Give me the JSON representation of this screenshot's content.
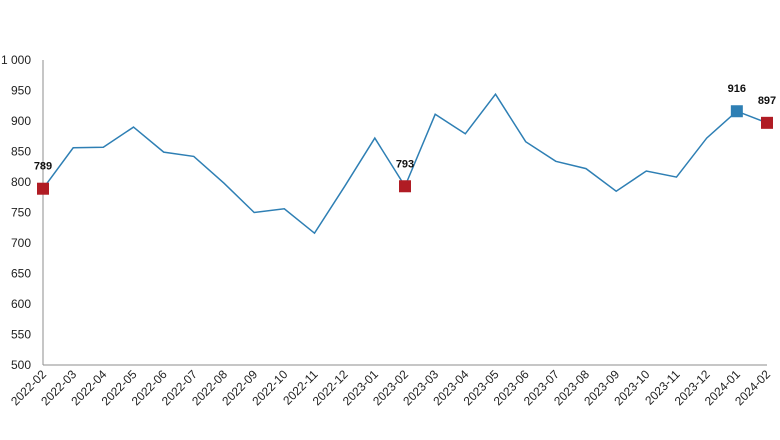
{
  "chart_data": {
    "type": "line",
    "title": "",
    "xlabel": "",
    "ylabel": "",
    "ylim": [
      500,
      1000
    ],
    "yticks": [
      500,
      550,
      600,
      650,
      700,
      750,
      800,
      850,
      900,
      950,
      1000
    ],
    "ytick_labels": [
      "500",
      "550",
      "600",
      "650",
      "700",
      "750",
      "800",
      "850",
      "900",
      "950",
      "1 000"
    ],
    "grid": false,
    "categories": [
      "2022-02",
      "2022-03",
      "2022-04",
      "2022-05",
      "2022-06",
      "2022-07",
      "2022-08",
      "2022-09",
      "2022-10",
      "2022-11",
      "2022-12",
      "2023-01",
      "2023-02",
      "2023-03",
      "2023-04",
      "2023-05",
      "2023-06",
      "2023-07",
      "2023-08",
      "2023-09",
      "2023-10",
      "2023-11",
      "2023-12",
      "2024-01",
      "2024-02"
    ],
    "series": [
      {
        "color": "#2e7fb4",
        "values": [
          789,
          856,
          857,
          890,
          849,
          842,
          798,
          750,
          756,
          716,
          793,
          872,
          793,
          911,
          879,
          944,
          866,
          834,
          822,
          785,
          818,
          808,
          872,
          916,
          897
        ]
      }
    ],
    "highlights": [
      {
        "index": 0,
        "label": "789",
        "color": "#b01c24"
      },
      {
        "index": 12,
        "label": "793",
        "color": "#b01c24"
      },
      {
        "index": 23,
        "label": "916",
        "color": "#2e7fb4"
      },
      {
        "index": 24,
        "label": "897",
        "color": "#b01c24"
      }
    ]
  }
}
